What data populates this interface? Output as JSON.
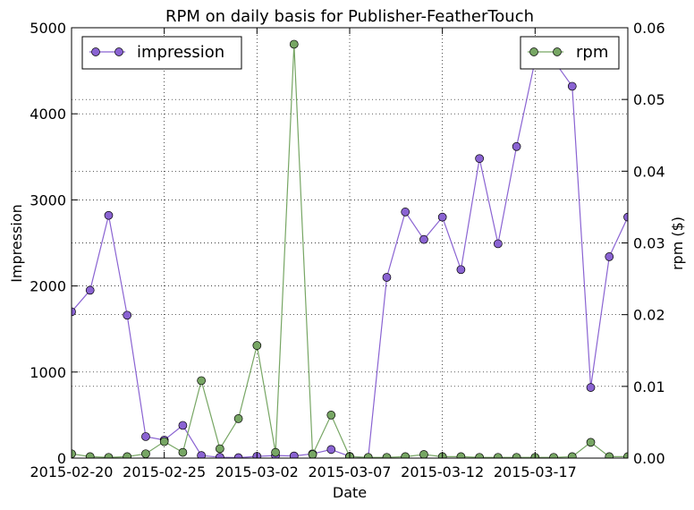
{
  "chart_data": {
    "type": "line",
    "title": "RPM on daily basis for Publisher-FeatherTouch",
    "xlabel": "Date",
    "ylabel_left": "Impression",
    "ylabel_right": "rpm ($)",
    "x_ticks": [
      "2015-02-20",
      "2015-02-25",
      "2015-03-02",
      "2015-03-07",
      "2015-03-12",
      "2015-03-17"
    ],
    "y_left": {
      "lim": [
        0,
        5000
      ],
      "ticks": [
        "0",
        "1000",
        "2000",
        "3000",
        "4000",
        "5000"
      ]
    },
    "y_right": {
      "lim": [
        0,
        0.06
      ],
      "ticks": [
        "0.00",
        "0.01",
        "0.02",
        "0.03",
        "0.04",
        "0.05",
        "0.06"
      ]
    },
    "x": [
      "2015-02-20",
      "2015-02-21",
      "2015-02-22",
      "2015-02-23",
      "2015-02-24",
      "2015-02-25",
      "2015-02-26",
      "2015-02-27",
      "2015-02-28",
      "2015-03-01",
      "2015-03-02",
      "2015-03-03",
      "2015-03-04",
      "2015-03-05",
      "2015-03-06",
      "2015-03-07",
      "2015-03-08",
      "2015-03-09",
      "2015-03-10",
      "2015-03-11",
      "2015-03-12",
      "2015-03-13",
      "2015-03-14",
      "2015-03-15",
      "2015-03-16",
      "2015-03-17",
      "2015-03-18",
      "2015-03-19",
      "2015-03-20",
      "2015-03-21",
      "2015-03-22"
    ],
    "series": [
      {
        "name": "impression",
        "axis": "left",
        "color": "#8a63d2",
        "values": [
          1700,
          1950,
          2820,
          1660,
          250,
          210,
          380,
          30,
          10,
          5,
          20,
          30,
          25,
          50,
          100,
          20,
          5,
          2100,
          2860,
          2540,
          2800,
          2190,
          3480,
          2490,
          3620,
          4620,
          4620,
          4320,
          820,
          2340,
          2800
        ]
      },
      {
        "name": "rpm",
        "axis": "right",
        "color": "#77a664",
        "values": [
          0.0006,
          0.0002,
          0.0001,
          0.0002,
          0.0006,
          0.0023,
          0.0008,
          0.0108,
          0.0013,
          0.0055,
          0.0157,
          0.0008,
          0.0577,
          0.0005,
          0.006,
          0.0002,
          0.0001,
          0.0001,
          0.0002,
          0.0005,
          0.0002,
          0.0002,
          0.0001,
          0.0001,
          0.0001,
          0.0001,
          0.0001,
          0.0002,
          0.0022,
          0.0002,
          0.0002
        ]
      }
    ],
    "grid": true,
    "legend": {
      "left": "top-left",
      "right": "top-right"
    }
  }
}
